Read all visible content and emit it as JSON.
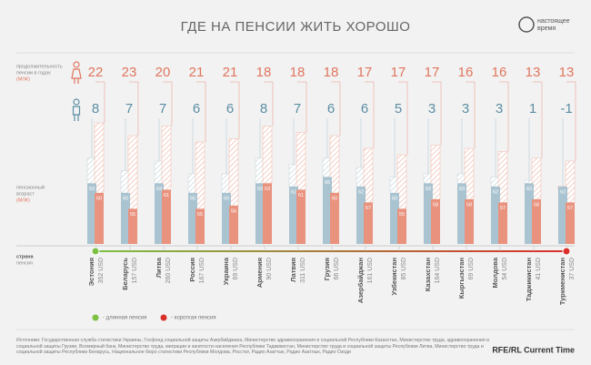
{
  "title": "ГДЕ НА ПЕНСИИ ЖИТЬ ХОРОШО",
  "logo": [
    "настоящее",
    "время"
  ],
  "labels": {
    "duration": [
      "продолжительность",
      "пенсии в годах",
      "(М/Ж)"
    ],
    "age": [
      "пенсионный",
      "возраст",
      "(М/Ж)"
    ],
    "country": "страна",
    "pension": "пенсия"
  },
  "legend": [
    {
      "text": "- длинная пенсия",
      "color": "#7cc143"
    },
    {
      "text": "- короткая пенсия",
      "color": "#d9302b"
    }
  ],
  "source": "Источники: Государственная служба статистики Украины, Госфонд социальной защиты Азербайджана, Министерство здравоохранения и социальной Республики Казахстан, Министерство труда, здравоохранения и социальной защиты Грузии, Всемирный банк, Министерство труда, миграции и занятости населения Республики Таджикистан, Министерство труда и социальной защиты Республики Литва, Министерство труда и социальной защиты Республики Беларусь, Национальное бюро статистики Республики Молдова, Росстат, Радио Азаттык, Радио Азатлык, Радио Озоди",
  "credit": "RFE/RL Current Time",
  "chart_data": {
    "type": "pension-bars",
    "categories": [
      "Эстония",
      "Беларусь",
      "Литва",
      "Россия",
      "Украина",
      "Армения",
      "Латвия",
      "Грузия",
      "Азербайджан",
      "Узбекистан",
      "Казахстан",
      "Кыргызстан",
      "Молдова",
      "Таджикистан",
      "Туркменистан"
    ],
    "pensions": [
      "352 USD",
      "157 USD",
      "260 USD",
      "167 USD",
      "69 USD",
      "90 USD",
      "311 USD",
      "66 USD",
      "161 USD",
      "85 USD",
      "164 USD",
      "69 USD",
      "54 USD",
      "41 USD",
      "37 USD"
    ],
    "women_years": [
      22,
      23,
      20,
      21,
      21,
      18,
      18,
      18,
      17,
      17,
      17,
      16,
      16,
      13,
      13
    ],
    "men_years": [
      8,
      7,
      7,
      6,
      6,
      8,
      7,
      6,
      6,
      5,
      3,
      3,
      3,
      1,
      -1
    ],
    "men_age": [
      63,
      60,
      63,
      60,
      60,
      63,
      62,
      65,
      62,
      60,
      63,
      63,
      62,
      63,
      62
    ],
    "women_age": [
      60,
      55,
      61,
      55,
      56,
      63,
      61,
      60,
      57,
      55,
      58,
      58,
      57,
      58,
      57
    ],
    "colors": {
      "men": "#a9c4d0",
      "men_text": "#5b8ea3",
      "women": "#e9927e",
      "women_text": "#e0765f"
    },
    "ylim": [
      44,
      90
    ]
  }
}
